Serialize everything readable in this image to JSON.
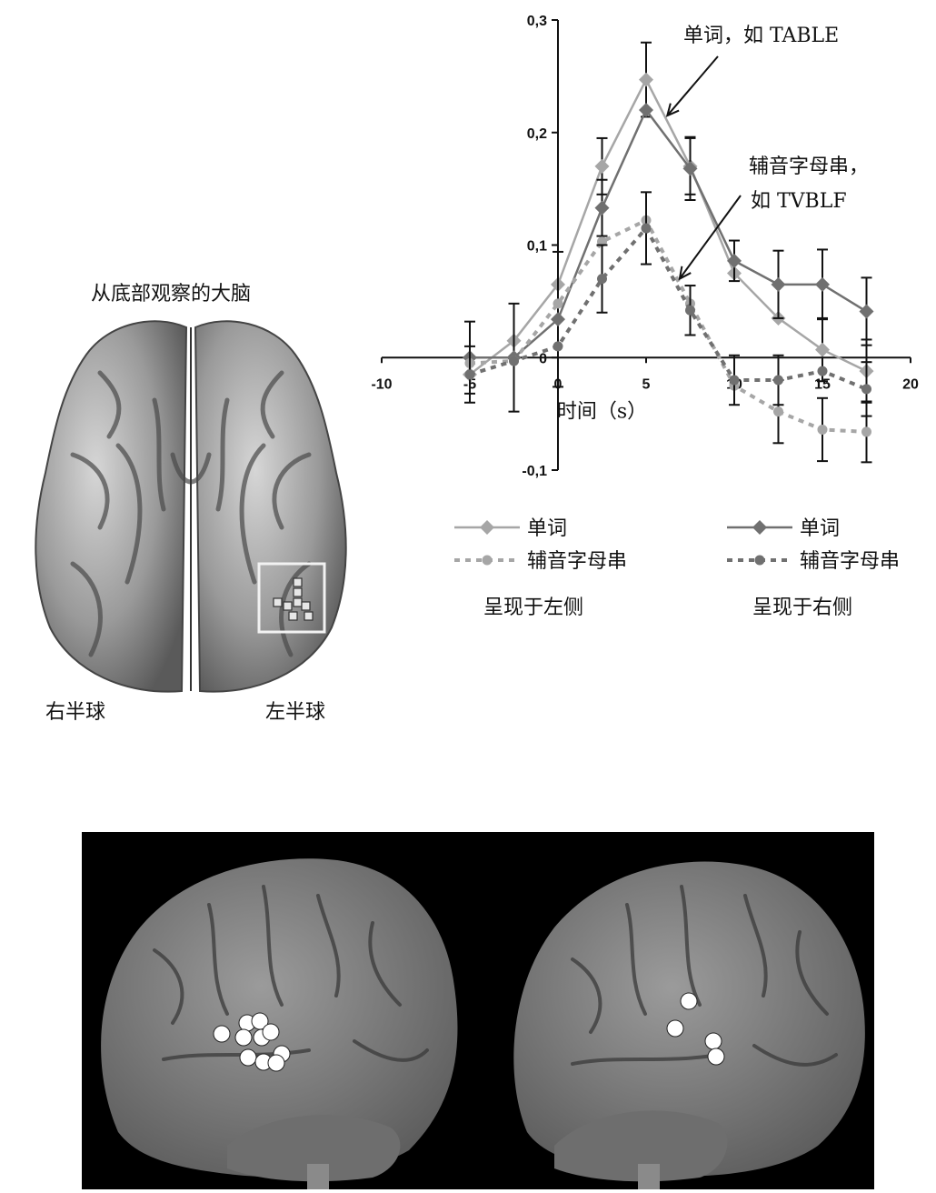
{
  "brain_view": {
    "title": "从底部观察的大脑",
    "right_hemisphere_label": "右半球",
    "left_hemisphere_label": "左半球"
  },
  "chart_data": {
    "type": "line",
    "xlabel": "时间（s）",
    "ylabel": "",
    "xlim": [
      -10,
      20
    ],
    "ylim": [
      -0.1,
      0.3
    ],
    "x_ticks": [
      "-10",
      "-5",
      "0",
      "5",
      "10",
      "15",
      "20"
    ],
    "y_ticks": [
      "-0,1",
      "0",
      "0,1",
      "0,2",
      "0,3"
    ],
    "x": [
      -5,
      -2.5,
      0,
      2.5,
      5,
      7.5,
      10,
      12.5,
      15,
      17.5
    ],
    "series": [
      {
        "name": "单词",
        "group": "呈现于左侧",
        "color": "#a6a6a6",
        "dash": false,
        "marker": "diamond",
        "values": [
          -0.015,
          0.015,
          0.065,
          0.17,
          0.247,
          0.17,
          0.075,
          0.035,
          0.007,
          -0.012
        ],
        "errors": [
          0.0,
          0.0,
          0.0,
          0.025,
          0.033,
          0.025,
          0.0,
          0.0,
          0.028,
          0.028
        ]
      },
      {
        "name": "单词",
        "group": "呈现于右侧",
        "color": "#707070",
        "dash": false,
        "marker": "diamond",
        "values": [
          0.0,
          0.0,
          0.034,
          0.133,
          0.22,
          0.168,
          0.086,
          0.065,
          0.065,
          0.041
        ],
        "errors": [
          0.032,
          0.048,
          0.06,
          0.025,
          0.0,
          0.028,
          0.018,
          0.03,
          0.031,
          0.03
        ]
      },
      {
        "name": "辅音字母串",
        "group": "呈现于左侧",
        "color": "#a6a6a6",
        "dash": true,
        "marker": "circle",
        "values": [
          -0.005,
          -0.003,
          0.048,
          0.103,
          0.122,
          0.048,
          -0.025,
          -0.048,
          -0.064,
          -0.066
        ],
        "errors": [
          0.0,
          0.0,
          0.0,
          0.0,
          0.0,
          0.0,
          0.0,
          0.028,
          0.028,
          0.027
        ]
      },
      {
        "name": "辅音字母串",
        "group": "呈现于右侧",
        "color": "#707070",
        "dash": true,
        "marker": "circle",
        "values": [
          -0.015,
          -0.003,
          0.01,
          0.07,
          0.115,
          0.042,
          -0.02,
          -0.02,
          -0.012,
          -0.028
        ],
        "errors": [
          0.025,
          0.0,
          0.0,
          0.03,
          0.032,
          0.022,
          0.022,
          0.022,
          0.0,
          0.024
        ]
      }
    ],
    "annotations": [
      {
        "text": "单词，如 TABLE",
        "target_x": 6.2,
        "target_y": 0.215
      },
      {
        "text": "辅音字母串，",
        "text2": "如 TVBLF",
        "target_x": 6.9,
        "target_y": 0.07
      }
    ],
    "legend": {
      "placement": "bottom",
      "items": [
        {
          "label": "单词",
          "series_index": 0
        },
        {
          "label": "单词",
          "series_index": 1
        },
        {
          "label": "辅音字母串",
          "series_index": 2
        },
        {
          "label": "辅音字母串",
          "series_index": 3
        }
      ],
      "group_labels": [
        "呈现于左侧",
        "呈现于右侧"
      ]
    },
    "grid": false
  }
}
